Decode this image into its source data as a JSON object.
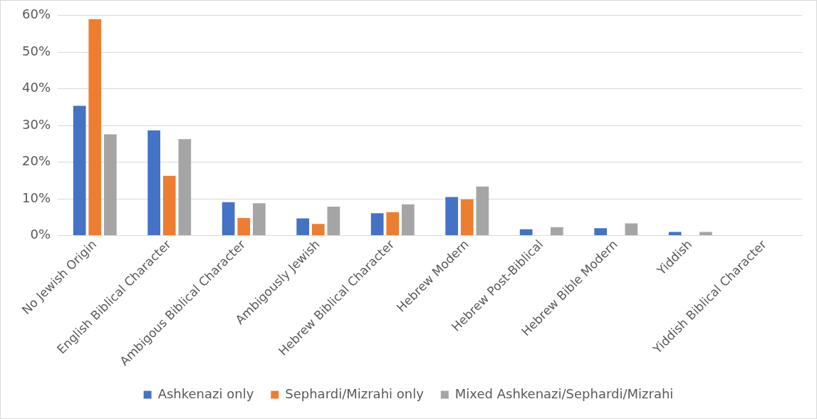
{
  "chart_data": {
    "type": "bar",
    "categories": [
      "No Jewish Origin",
      "English Biblical Character",
      "Ambigous Biblical Character",
      "Ambigously Jewish",
      "Hebrew Biblical Character",
      "Hebrew Modern",
      "Hebrew Post-Biblical",
      "Hebrew Bible Modern",
      "Yiddish",
      "Yiddish Biblical Character"
    ],
    "series": [
      {
        "name": "Ashkenazi only",
        "color": "#4472c4",
        "values": [
          35.4,
          28.7,
          9.1,
          4.7,
          6.1,
          10.5,
          1.7,
          2.0,
          1.0,
          null
        ]
      },
      {
        "name": "Sephardi/Mizrahi only",
        "color": "#ed7d31",
        "values": [
          59,
          16.3,
          4.8,
          3.2,
          6.4,
          9.9,
          0,
          0,
          0,
          0
        ]
      },
      {
        "name": "Mixed Ashkenazi/Sephardi/Mizrahi",
        "color": "#a5a5a5",
        "values": [
          27.6,
          26.3,
          8.8,
          7.9,
          8.5,
          13.4,
          2.3,
          3.3,
          1.0,
          null
        ]
      }
    ],
    "ylim": [
      0,
      60
    ],
    "yticks": [
      {
        "value": 0,
        "label": "0%"
      },
      {
        "value": 10,
        "label": "10%"
      },
      {
        "value": 20,
        "label": "20%"
      },
      {
        "value": 30,
        "label": "30%"
      },
      {
        "value": 40,
        "label": "40%"
      },
      {
        "value": 50,
        "label": "50%"
      },
      {
        "value": 60,
        "label": "60%"
      }
    ],
    "grid": "y",
    "legend": "bottom"
  }
}
